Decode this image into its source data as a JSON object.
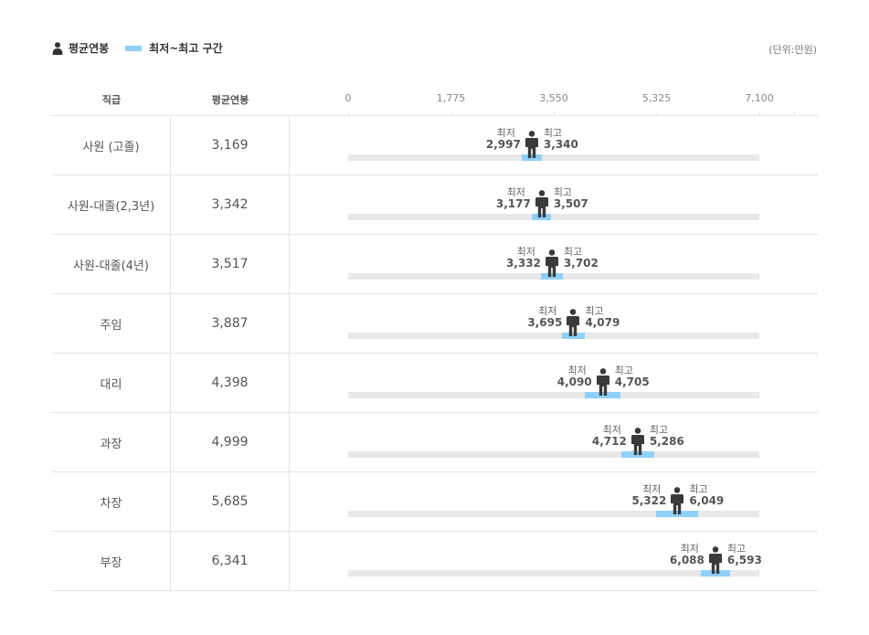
{
  "legend": {
    "avg_label": "평균연봉",
    "range_label": "최저~최고 구간",
    "unit": "(단위:만원)"
  },
  "table": {
    "col_rank": "직급",
    "col_avg": "평균연봉"
  },
  "labels": {
    "min": "최저",
    "max": "최고"
  },
  "colors": {
    "range": "#8fd0f8",
    "track": "#e8e8e8",
    "person": "#3a3a3a"
  },
  "chart_data": {
    "type": "bar",
    "xlim": [
      0,
      7100
    ],
    "x_ticks": [
      "0",
      "1,775",
      "3,550",
      "5,325",
      "7,100"
    ],
    "x_tick_values": [
      0,
      1775,
      3550,
      5325,
      7100
    ],
    "rows": [
      {
        "rank": "사원 (고졸)",
        "avg": 3169,
        "avg_text": "3,169",
        "min": 2997,
        "min_text": "2,997",
        "max": 3340,
        "max_text": "3,340"
      },
      {
        "rank": "사원-대졸(2,3년)",
        "avg": 3342,
        "avg_text": "3,342",
        "min": 3177,
        "min_text": "3,177",
        "max": 3507,
        "max_text": "3,507"
      },
      {
        "rank": "사원-대졸(4년)",
        "avg": 3517,
        "avg_text": "3,517",
        "min": 3332,
        "min_text": "3,332",
        "max": 3702,
        "max_text": "3,702"
      },
      {
        "rank": "주임",
        "avg": 3887,
        "avg_text": "3,887",
        "min": 3695,
        "min_text": "3,695",
        "max": 4079,
        "max_text": "4,079"
      },
      {
        "rank": "대리",
        "avg": 4398,
        "avg_text": "4,398",
        "min": 4090,
        "min_text": "4,090",
        "max": 4705,
        "max_text": "4,705"
      },
      {
        "rank": "과장",
        "avg": 4999,
        "avg_text": "4,999",
        "min": 4712,
        "min_text": "4,712",
        "max": 5286,
        "max_text": "5,286"
      },
      {
        "rank": "차장",
        "avg": 5685,
        "avg_text": "5,685",
        "min": 5322,
        "min_text": "5,322",
        "max": 6049,
        "max_text": "6,049"
      },
      {
        "rank": "부장",
        "avg": 6341,
        "avg_text": "6,341",
        "min": 6088,
        "min_text": "6,088",
        "max": 6593,
        "max_text": "6,593"
      }
    ]
  }
}
